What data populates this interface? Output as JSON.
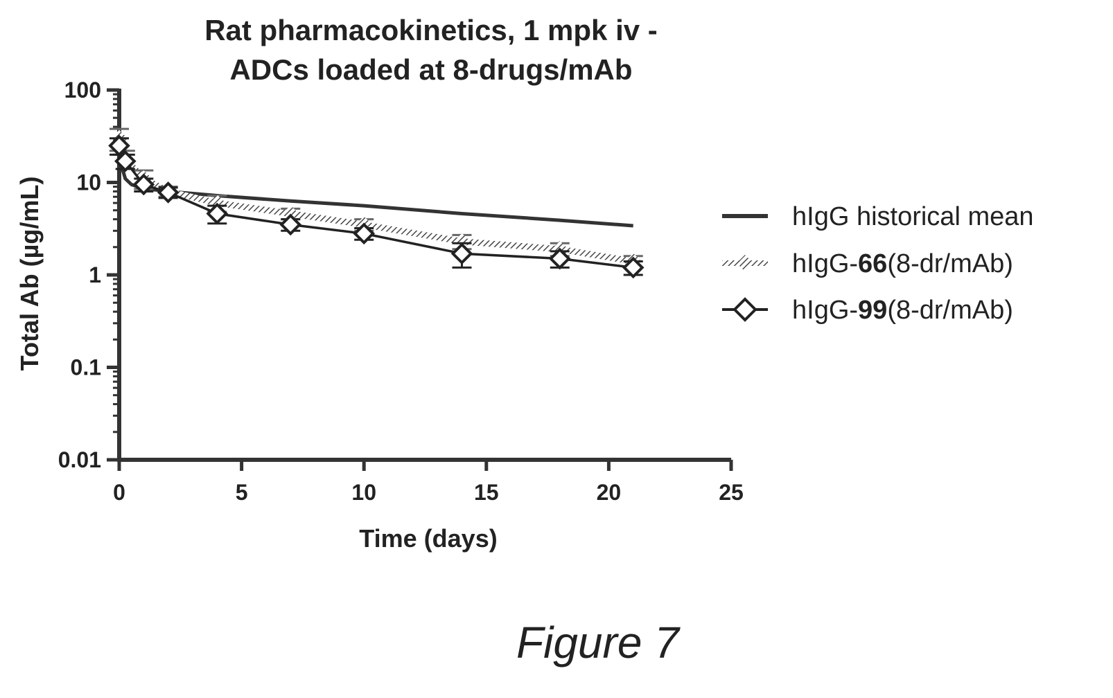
{
  "chart_data": {
    "type": "line",
    "title": [
      "Rat pharmacokinetics, 1 mpk iv -",
      "ADCs loaded at 8-drugs/mAb"
    ],
    "xlabel": "Time  (days)",
    "ylabel": "Total  Ab (µg/mL)",
    "xlim": [
      0,
      25
    ],
    "ylim": [
      0.01,
      100
    ],
    "yscale": "log",
    "xticks": [
      0,
      5,
      10,
      15,
      20,
      25
    ],
    "xtick_labels": [
      "0",
      "5",
      "10",
      "15",
      "20",
      "25"
    ],
    "yticks": [
      0.01,
      0.1,
      1,
      10,
      100
    ],
    "ytick_labels": [
      "0.01",
      "0.1",
      "1",
      "10",
      "100"
    ],
    "legend_position": "right",
    "series": [
      {
        "name": "hIgG historical mean",
        "legend_prefix": "hIgG historical mean",
        "legend_number": "",
        "legend_suffix": "",
        "style": "solid",
        "marker": "none",
        "color": "#333333",
        "x": [
          0,
          0.1,
          0.25,
          0.5,
          1,
          2,
          4,
          7,
          10,
          14,
          18,
          21
        ],
        "y": [
          22,
          15,
          11,
          9.5,
          8.6,
          8.0,
          7.2,
          6.3,
          5.6,
          4.6,
          3.9,
          3.4
        ],
        "error": []
      },
      {
        "name": "hIgG-66(8-dr/mAb)",
        "legend_prefix": "hIgG-",
        "legend_number": "66",
        "legend_suffix": "(8-dr/mAb)",
        "style": "hatched",
        "marker": "diamond-hatched",
        "color": "#555555",
        "x": [
          0,
          0.25,
          1,
          2,
          4,
          7,
          10,
          14,
          18,
          21
        ],
        "y": [
          30,
          18,
          11,
          8.0,
          6.0,
          4.6,
          3.5,
          2.3,
          1.9,
          1.4
        ],
        "error": [
          8,
          4,
          2.5,
          1.0,
          1.2,
          0.6,
          0.5,
          0.4,
          0.3,
          0.2
        ]
      },
      {
        "name": "hIgG-99(8-dr/mAb)",
        "legend_prefix": "hIgG-",
        "legend_number": "99",
        "legend_suffix": "(8-dr/mAb)",
        "style": "solid",
        "marker": "diamond-open",
        "color": "#222222",
        "x": [
          0,
          0.25,
          1,
          2,
          4,
          7,
          10,
          14,
          18,
          21
        ],
        "y": [
          25,
          17,
          9.5,
          7.8,
          4.6,
          3.5,
          2.8,
          1.7,
          1.5,
          1.2
        ],
        "error": [
          5,
          3,
          1.5,
          1.0,
          1.0,
          0.5,
          0.4,
          0.5,
          0.3,
          0.2
        ]
      }
    ]
  },
  "caption": "Figure 7"
}
